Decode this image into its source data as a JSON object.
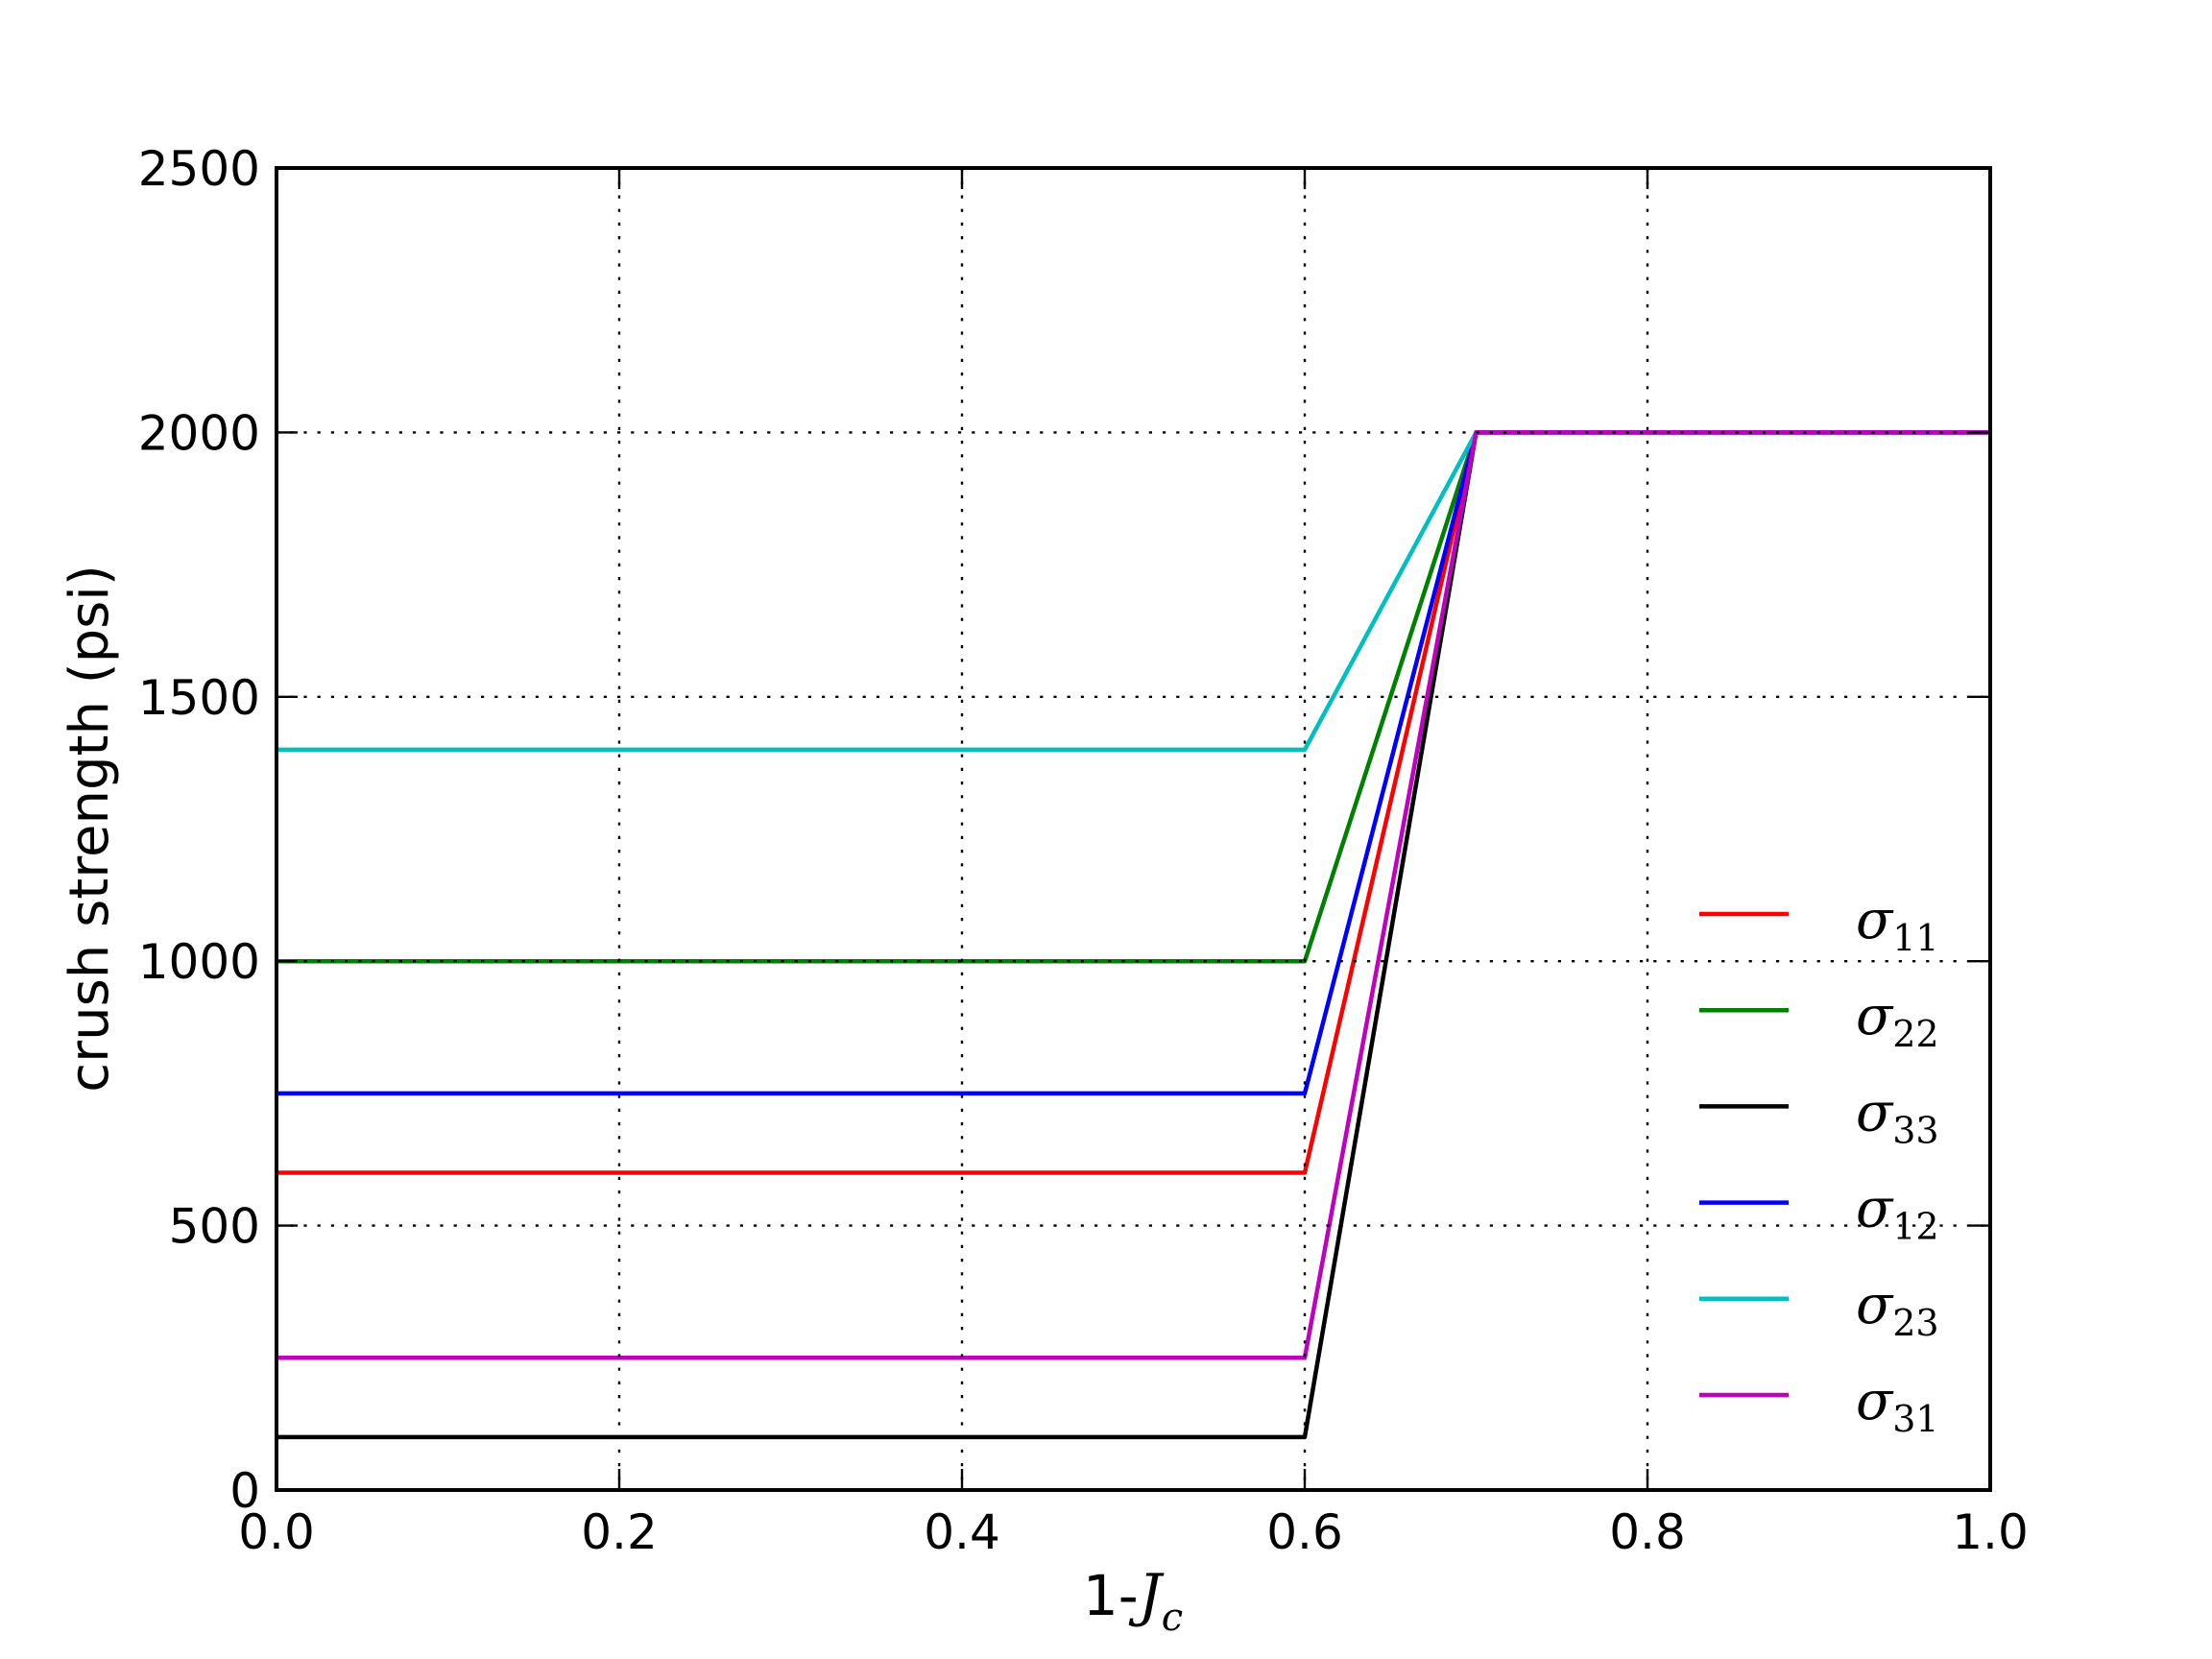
{
  "chart_data": {
    "type": "line",
    "title": "",
    "xlabel": "1-J_c",
    "xlabel_parts": {
      "prefix": "1-",
      "symbol": "J",
      "subscript": "c"
    },
    "ylabel": "crush strength (psi)",
    "xlim": [
      0.0,
      1.0
    ],
    "ylim": [
      0,
      2500
    ],
    "xticks": [
      "0.0",
      "0.2",
      "0.4",
      "0.6",
      "0.8",
      "1.0"
    ],
    "yticks": [
      "0",
      "500",
      "1000",
      "1500",
      "2000",
      "2500"
    ],
    "grid": "dotted",
    "grid_color": "#000000",
    "legend_position": "center-right",
    "legend_frame": false,
    "x": [
      0.0,
      0.6,
      0.7,
      1.0
    ],
    "series": [
      {
        "name": "sigma_11",
        "label_symbol": "σ",
        "label_subscript": "11",
        "color": "#ff0000",
        "values": [
          600,
          600,
          2000,
          2000
        ]
      },
      {
        "name": "sigma_22",
        "label_symbol": "σ",
        "label_subscript": "22",
        "color": "#008000",
        "values": [
          1000,
          1000,
          2000,
          2000
        ]
      },
      {
        "name": "sigma_33",
        "label_symbol": "σ",
        "label_subscript": "33",
        "color": "#000000",
        "values": [
          100,
          100,
          2000,
          2000
        ]
      },
      {
        "name": "sigma_12",
        "label_symbol": "σ",
        "label_subscript": "12",
        "color": "#0000ff",
        "values": [
          750,
          750,
          2000,
          2000
        ]
      },
      {
        "name": "sigma_23",
        "label_symbol": "σ",
        "label_subscript": "23",
        "color": "#00bfbf",
        "values": [
          1400,
          1400,
          2000,
          2000
        ]
      },
      {
        "name": "sigma_31",
        "label_symbol": "σ",
        "label_subscript": "31",
        "color": "#bf00bf",
        "values": [
          250,
          250,
          2000,
          2000
        ]
      }
    ]
  }
}
